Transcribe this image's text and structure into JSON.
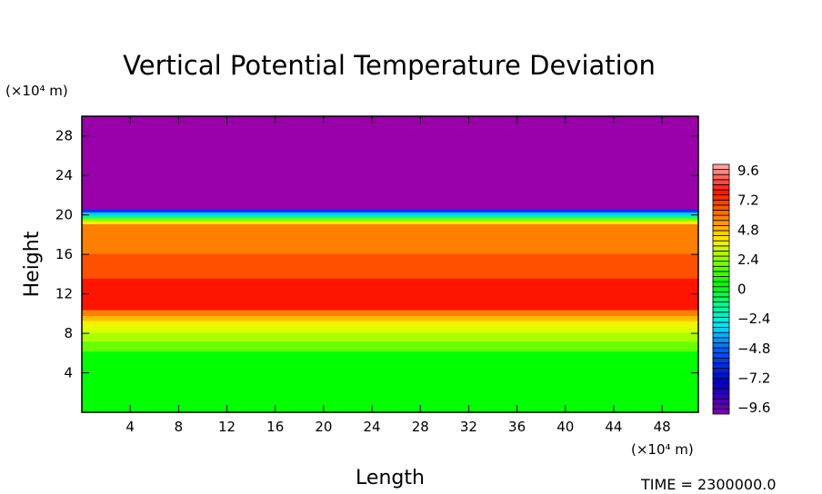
{
  "chart_data": {
    "type": "heatmap",
    "title": "Vertical Potential Temperature Deviation",
    "xlabel": "Length",
    "ylabel": "Height",
    "x_unit": "(×10⁴ m)",
    "y_unit": "(×10⁴ m)",
    "xlim": [
      0,
      51
    ],
    "ylim": [
      0,
      30
    ],
    "x_ticks": [
      4,
      8,
      12,
      16,
      20,
      24,
      28,
      32,
      36,
      40,
      44,
      48
    ],
    "y_ticks": [
      4,
      8,
      12,
      16,
      20,
      24,
      28
    ],
    "colorbar": {
      "min": -9.6,
      "max": 9.6,
      "step": 0.4,
      "tick_labels": [
        "9.6",
        "7.2",
        "4.8",
        "2.4",
        "0",
        "−2.4",
        "−4.8",
        "−7.2",
        "−9.6"
      ]
    },
    "bands": [
      {
        "h": [
          0,
          6.2
        ],
        "value": 0.4,
        "color": "#00ff00"
      },
      {
        "h": [
          6.2,
          7.2
        ],
        "value": 1.6,
        "color": "#66ff00"
      },
      {
        "h": [
          7.2,
          8.1
        ],
        "value": 2.4,
        "color": "#aaff00"
      },
      {
        "h": [
          8.1,
          8.8
        ],
        "value": 3.2,
        "color": "#ddff00"
      },
      {
        "h": [
          8.8,
          9.3
        ],
        "value": 4.0,
        "color": "#ffee00"
      },
      {
        "h": [
          9.3,
          9.8
        ],
        "value": 4.8,
        "color": "#ffbb00"
      },
      {
        "h": [
          9.8,
          10.4
        ],
        "value": 5.6,
        "color": "#ff8000"
      },
      {
        "h": [
          10.4,
          13.6
        ],
        "value": 7.2,
        "color": "#ff1400"
      },
      {
        "h": [
          13.6,
          16.1
        ],
        "value": 6.4,
        "color": "#ff5000"
      },
      {
        "h": [
          16.1,
          19.1
        ],
        "value": 5.6,
        "color": "#ff7f00"
      },
      {
        "h": [
          19.1,
          19.4
        ],
        "value": 4.0,
        "color": "#ffee00"
      },
      {
        "h": [
          19.4,
          19.7
        ],
        "value": 1.6,
        "color": "#88ff00"
      },
      {
        "h": [
          19.7,
          20.0
        ],
        "value": -1.6,
        "color": "#00ff88"
      },
      {
        "h": [
          20.0,
          20.3
        ],
        "value": -4.0,
        "color": "#00ccff"
      },
      {
        "h": [
          20.3,
          20.6
        ],
        "value": -7.2,
        "color": "#0033ff"
      },
      {
        "h": [
          20.6,
          30
        ],
        "value": -9.6,
        "color": "#9900aa"
      }
    ]
  },
  "footer": {
    "time_label": "TIME = 2300000.0"
  }
}
